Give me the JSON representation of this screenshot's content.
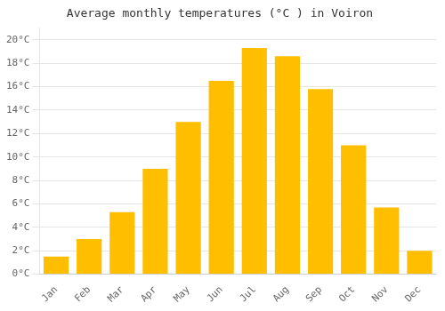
{
  "chart_data": {
    "type": "bar",
    "title": "Average monthly temperatures (°C ) in Voiron",
    "categories": [
      "Jan",
      "Feb",
      "Mar",
      "Apr",
      "May",
      "Jun",
      "Jul",
      "Aug",
      "Sep",
      "Oct",
      "Nov",
      "Dec"
    ],
    "values": [
      1.5,
      3.0,
      5.3,
      9.0,
      13.0,
      16.5,
      19.3,
      18.6,
      15.8,
      11.0,
      5.7,
      2.0
    ],
    "color": "#FFBE00",
    "ylim": [
      0,
      21
    ],
    "yticks": [
      {
        "value": 0,
        "label": "0°C"
      },
      {
        "value": 2,
        "label": "2°C"
      },
      {
        "value": 4,
        "label": "4°C"
      },
      {
        "value": 6,
        "label": "6°C"
      },
      {
        "value": 8,
        "label": "8°C"
      },
      {
        "value": 10,
        "label": "10°C"
      },
      {
        "value": 12,
        "label": "12°C"
      },
      {
        "value": 14,
        "label": "14°C"
      },
      {
        "value": 16,
        "label": "16°C"
      },
      {
        "value": 18,
        "label": "18°C"
      },
      {
        "value": 20,
        "label": "20°C"
      }
    ],
    "grid": true
  }
}
